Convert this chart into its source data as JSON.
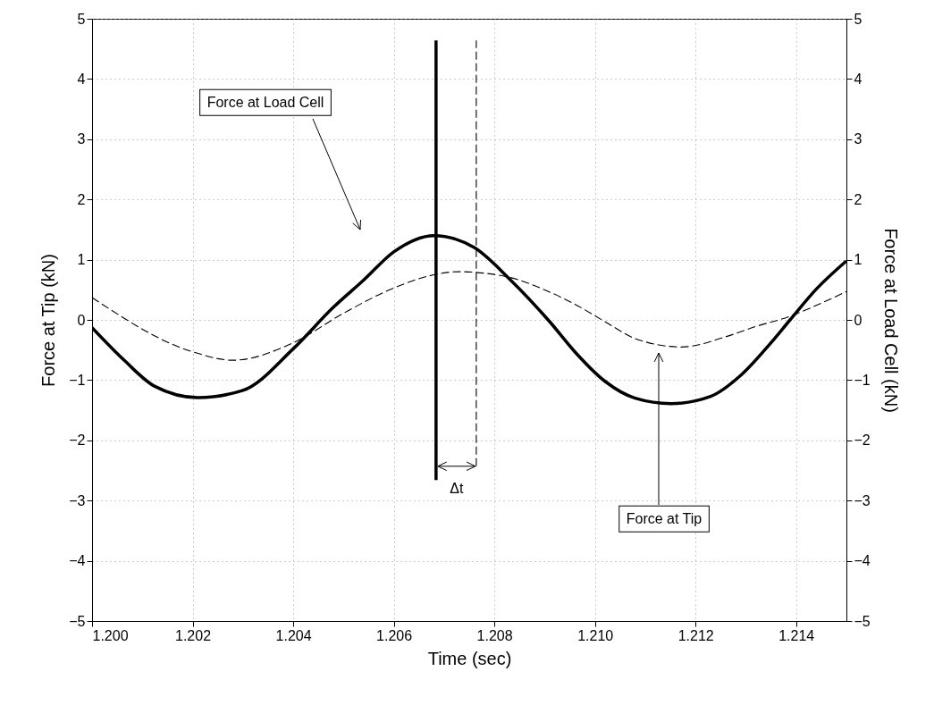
{
  "chart_data": {
    "type": "line",
    "xlabel": "Time (sec)",
    "ylabel": "Force at Tip (kN)",
    "y2label": "Force at Load Cell (kN)",
    "xlim": [
      1.2,
      1.215
    ],
    "xticks": [
      {
        "value": 1.2,
        "label": "1.200"
      },
      {
        "value": 1.202,
        "label": "1.202"
      },
      {
        "value": 1.204,
        "label": "1.204"
      },
      {
        "value": 1.206,
        "label": "1.206"
      },
      {
        "value": 1.208,
        "label": "1.208"
      },
      {
        "value": 1.21,
        "label": "1.210"
      },
      {
        "value": 1.212,
        "label": "1.212"
      },
      {
        "value": 1.214,
        "label": "1.214"
      }
    ],
    "ylim": [
      -5,
      5
    ],
    "yticks": [
      -5,
      -4,
      -3,
      -2,
      -1,
      0,
      1,
      2,
      3,
      4,
      5
    ],
    "y2lim": [
      -5,
      5
    ],
    "y2ticks": [
      -5,
      -4,
      -3,
      -2,
      -1,
      0,
      1,
      2,
      3,
      4,
      5
    ],
    "grid": true,
    "series": [
      {
        "color": "#000000",
        "line_style": "solid",
        "x": [
          1.2,
          1.20065,
          1.20124,
          1.2021,
          1.203,
          1.204,
          1.2048,
          1.2054,
          1.206,
          1.2068,
          1.2076,
          1.2083,
          1.2091,
          1.2096,
          1.2102,
          1.2108,
          1.21151,
          1.2123,
          1.2129,
          1.2135,
          1.21388,
          1.2144,
          1.215
        ],
        "values": [
          -0.13,
          -0.68,
          -1.1,
          -1.29,
          -1.17,
          -0.48,
          0.21,
          0.66,
          1.13,
          1.4,
          1.2,
          0.68,
          -0.03,
          -0.53,
          -1.02,
          -1.3,
          -1.39,
          -1.27,
          -0.92,
          -0.38,
          0,
          0.51,
          0.98
        ]
      },
      {
        "color": "#000000",
        "line_style": "dashed",
        "x": [
          1.2,
          1.202,
          1.2028,
          1.204,
          1.205,
          1.206,
          1.2067,
          1.20728,
          1.20828,
          1.20905,
          1.2096,
          1.2102,
          1.2108,
          1.21172,
          1.2126,
          1.2132,
          1.21388,
          1.2144,
          1.215
        ],
        "values": [
          0.37,
          -0.53,
          -0.67,
          -0.38,
          0.11,
          0.53,
          0.73,
          0.8,
          0.71,
          0.48,
          0.26,
          -0.03,
          -0.31,
          -0.45,
          -0.28,
          -0.11,
          0.06,
          0.24,
          0.47
        ]
      },
      {
        "color": "#000000",
        "line_style": "solid",
        "x": [
          1.20684,
          1.20684
        ],
        "values": [
          -2.66,
          4.64
        ]
      },
      {
        "color": "#000000",
        "line_style": "dashed",
        "x": [
          1.20764,
          1.20764
        ],
        "values": [
          -2.43,
          4.64
        ]
      }
    ],
    "annotations": [
      "Force at Load Cell",
      "Force at Tip",
      "Δt"
    ]
  }
}
